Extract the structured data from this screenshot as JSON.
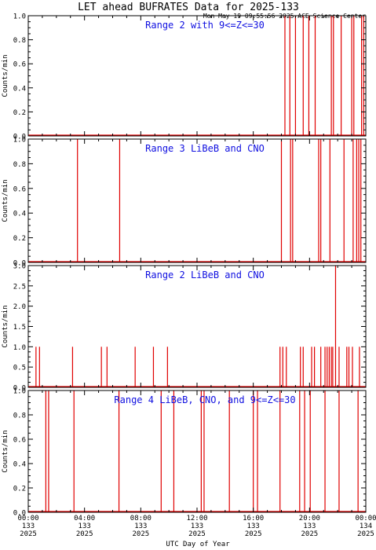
{
  "header": {
    "title": "LET ahead BUFRATES Data for 2025-133",
    "timestamp": "Mon May 19 09:55:56 2025 ACE Science Center"
  },
  "colors": {
    "data": "#e00000",
    "panel_title": "#1010e0",
    "axes": "#000000"
  },
  "xaxis": {
    "label": "UTC Day of Year",
    "ticks": [
      {
        "time": "00:00",
        "doy": "133",
        "year": "2025",
        "hours": 0
      },
      {
        "time": "04:00",
        "doy": "133",
        "year": "2025",
        "hours": 4
      },
      {
        "time": "08:00",
        "doy": "133",
        "year": "2025",
        "hours": 8
      },
      {
        "time": "12:00",
        "doy": "133",
        "year": "2025",
        "hours": 12
      },
      {
        "time": "16:00",
        "doy": "133",
        "year": "2025",
        "hours": 16
      },
      {
        "time": "20:00",
        "doy": "133",
        "year": "2025",
        "hours": 20
      },
      {
        "time": "00:00",
        "doy": "134",
        "year": "2025",
        "hours": 24
      }
    ]
  },
  "chart_data": [
    {
      "type": "line",
      "title": "Range 2 with 9<=Z<=30",
      "ylabel": "Counts/min",
      "xlim": [
        0,
        24
      ],
      "ylim": [
        0,
        1.0
      ],
      "yticks": [
        "0.0",
        "0.2",
        "0.4",
        "0.6",
        "0.8",
        "1.0"
      ],
      "spikes": [
        {
          "x": 18.25,
          "y": 1
        },
        {
          "x": 18.6,
          "y": 1
        },
        {
          "x": 19.0,
          "y": 1
        },
        {
          "x": 19.55,
          "y": 1
        },
        {
          "x": 19.95,
          "y": 1
        },
        {
          "x": 20.4,
          "y": 1
        },
        {
          "x": 21.55,
          "y": 1
        },
        {
          "x": 21.7,
          "y": 1
        },
        {
          "x": 22.25,
          "y": 1
        },
        {
          "x": 23.0,
          "y": 1
        },
        {
          "x": 23.15,
          "y": 1
        },
        {
          "x": 23.7,
          "y": 1
        },
        {
          "x": 23.85,
          "y": 1
        }
      ]
    },
    {
      "type": "line",
      "title": "Range 3 LiBeB and CNO",
      "ylabel": "Counts/min",
      "xlim": [
        0,
        24
      ],
      "ylim": [
        0,
        1.0
      ],
      "yticks": [
        "0.0",
        "0.2",
        "0.4",
        "0.6",
        "0.8",
        "1.0"
      ],
      "spikes": [
        {
          "x": 3.5,
          "y": 1
        },
        {
          "x": 6.5,
          "y": 1
        },
        {
          "x": 18.0,
          "y": 1
        },
        {
          "x": 18.65,
          "y": 1
        },
        {
          "x": 18.8,
          "y": 1
        },
        {
          "x": 20.65,
          "y": 1
        },
        {
          "x": 20.8,
          "y": 1
        },
        {
          "x": 21.45,
          "y": 1
        },
        {
          "x": 22.45,
          "y": 1
        },
        {
          "x": 23.1,
          "y": 1
        },
        {
          "x": 23.35,
          "y": 1
        },
        {
          "x": 23.5,
          "y": 1
        },
        {
          "x": 23.65,
          "y": 1
        }
      ]
    },
    {
      "type": "line",
      "title": "Range 2 LiBeB and CNO",
      "ylabel": "Counts/min",
      "xlim": [
        0,
        24
      ],
      "ylim": [
        0,
        3.0
      ],
      "yticks": [
        "0.0",
        "0.5",
        "1.0",
        "1.5",
        "2.0",
        "2.5",
        "3.0"
      ],
      "spikes": [
        {
          "x": 0.55,
          "y": 1
        },
        {
          "x": 0.8,
          "y": 1
        },
        {
          "x": 3.15,
          "y": 1
        },
        {
          "x": 5.2,
          "y": 1
        },
        {
          "x": 5.6,
          "y": 1
        },
        {
          "x": 7.6,
          "y": 1
        },
        {
          "x": 8.9,
          "y": 1
        },
        {
          "x": 9.9,
          "y": 1
        },
        {
          "x": 17.9,
          "y": 1
        },
        {
          "x": 18.1,
          "y": 1
        },
        {
          "x": 18.35,
          "y": 1
        },
        {
          "x": 19.35,
          "y": 1
        },
        {
          "x": 19.55,
          "y": 1
        },
        {
          "x": 20.15,
          "y": 1
        },
        {
          "x": 20.35,
          "y": 1
        },
        {
          "x": 20.8,
          "y": 1
        },
        {
          "x": 21.1,
          "y": 1
        },
        {
          "x": 21.25,
          "y": 1
        },
        {
          "x": 21.4,
          "y": 1
        },
        {
          "x": 21.55,
          "y": 1
        },
        {
          "x": 21.65,
          "y": 1
        },
        {
          "x": 21.85,
          "y": 3
        },
        {
          "x": 22.1,
          "y": 1
        },
        {
          "x": 22.65,
          "y": 1
        },
        {
          "x": 22.8,
          "y": 1
        },
        {
          "x": 23.05,
          "y": 1
        },
        {
          "x": 23.55,
          "y": 1
        }
      ]
    },
    {
      "type": "line",
      "title": "Range 4 LiBeB, CNO, and 9<=Z<=30",
      "ylabel": "Counts/min",
      "xlim": [
        0,
        24
      ],
      "ylim": [
        0,
        1.0
      ],
      "yticks": [
        "0.0",
        "0.2",
        "0.4",
        "0.6",
        "0.8",
        "1.0"
      ],
      "spikes": [
        {
          "x": 1.25,
          "y": 1
        },
        {
          "x": 1.45,
          "y": 1
        },
        {
          "x": 3.25,
          "y": 1
        },
        {
          "x": 6.45,
          "y": 1
        },
        {
          "x": 9.45,
          "y": 1
        },
        {
          "x": 10.35,
          "y": 1
        },
        {
          "x": 12.3,
          "y": 1
        },
        {
          "x": 12.5,
          "y": 1
        },
        {
          "x": 14.3,
          "y": 1
        },
        {
          "x": 16.0,
          "y": 1
        },
        {
          "x": 16.3,
          "y": 1
        },
        {
          "x": 17.9,
          "y": 1
        },
        {
          "x": 19.3,
          "y": 1
        },
        {
          "x": 19.65,
          "y": 1
        },
        {
          "x": 20.05,
          "y": 1
        },
        {
          "x": 21.1,
          "y": 1
        },
        {
          "x": 22.1,
          "y": 1
        },
        {
          "x": 23.45,
          "y": 1
        }
      ]
    }
  ]
}
